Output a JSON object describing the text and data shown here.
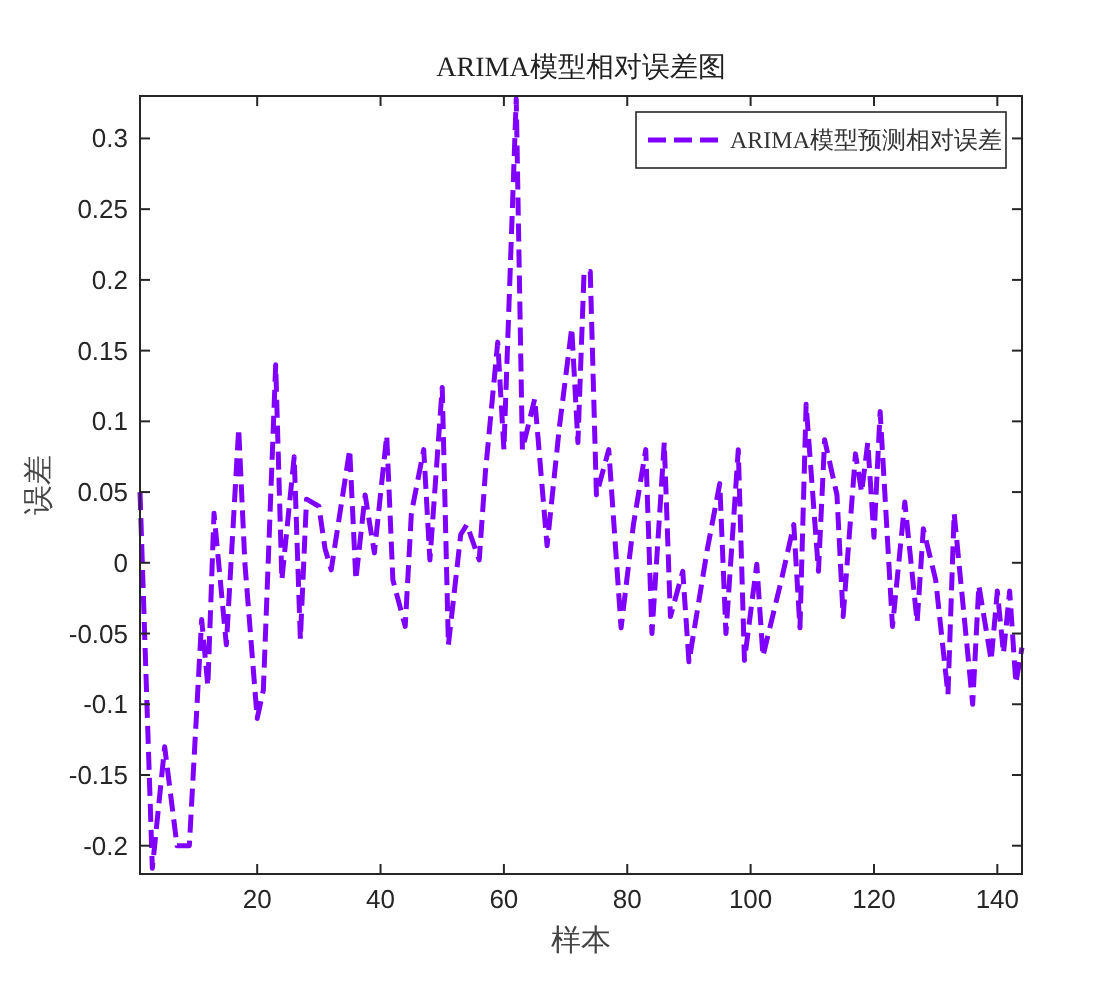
{
  "chart_data": {
    "type": "line",
    "title": "ARIMA模型相对误差图",
    "xlabel": "样本",
    "ylabel": "误差",
    "xlim": [
      1,
      144
    ],
    "xticks": [
      20,
      40,
      60,
      80,
      100,
      120,
      140
    ],
    "ylim": [
      -0.22,
      0.33
    ],
    "yticks": [
      -0.2,
      -0.15,
      -0.1,
      -0.05,
      0,
      0.05,
      0.1,
      0.15,
      0.2,
      0.25,
      0.3
    ],
    "grid": false,
    "legend": "top right",
    "line_style": "dashed",
    "marker": "none",
    "series": [
      {
        "name": "ARIMA模型预测相对误差",
        "color": "#7f00ff",
        "x": [
          1,
          3,
          5,
          7,
          9,
          11,
          12,
          13,
          15,
          17,
          18,
          20,
          21,
          23,
          24,
          26,
          27,
          28,
          30,
          31,
          32,
          35,
          36,
          37.5,
          39,
          41,
          42,
          44,
          45,
          47,
          48,
          50,
          51,
          53,
          54,
          56,
          57,
          59,
          60,
          62,
          63,
          65,
          67,
          69,
          71,
          72,
          73,
          74,
          75,
          77,
          79,
          81,
          83,
          84,
          86,
          87,
          89,
          90,
          93,
          95,
          96,
          98,
          99,
          101,
          102,
          105,
          107,
          108,
          109,
          111,
          112,
          114,
          115,
          117,
          118,
          119,
          120,
          121,
          123,
          125,
          127,
          128,
          130,
          132,
          133,
          136,
          137,
          139,
          140,
          141,
          142,
          143,
          144
        ],
        "values": [
          0.05,
          -0.216,
          -0.13,
          -0.2,
          -0.2,
          -0.04,
          -0.087,
          0.035,
          -0.058,
          0.095,
          0.0,
          -0.11,
          -0.09,
          0.14,
          -0.012,
          0.075,
          -0.054,
          0.045,
          0.04,
          0.01,
          -0.005,
          0.08,
          -0.012,
          0.048,
          0.007,
          0.09,
          -0.012,
          -0.045,
          0.035,
          0.08,
          0.002,
          0.124,
          -0.058,
          0.02,
          0.027,
          0.002,
          0.064,
          0.156,
          0.08,
          0.328,
          0.08,
          0.116,
          0.012,
          0.096,
          0.166,
          0.085,
          0.206,
          0.206,
          0.048,
          0.08,
          -0.046,
          0.027,
          0.08,
          -0.05,
          0.085,
          -0.038,
          -0.006,
          -0.07,
          0.01,
          0.056,
          -0.05,
          0.08,
          -0.069,
          -0.001,
          -0.066,
          -0.012,
          0.027,
          -0.046,
          0.112,
          -0.006,
          0.087,
          0.048,
          -0.038,
          0.077,
          0.05,
          0.085,
          0.018,
          0.107,
          -0.045,
          0.043,
          -0.042,
          0.024,
          -0.012,
          -0.093,
          0.035,
          -0.1,
          -0.016,
          -0.069,
          -0.02,
          -0.064,
          -0.02,
          -0.085,
          -0.06
        ]
      }
    ]
  }
}
